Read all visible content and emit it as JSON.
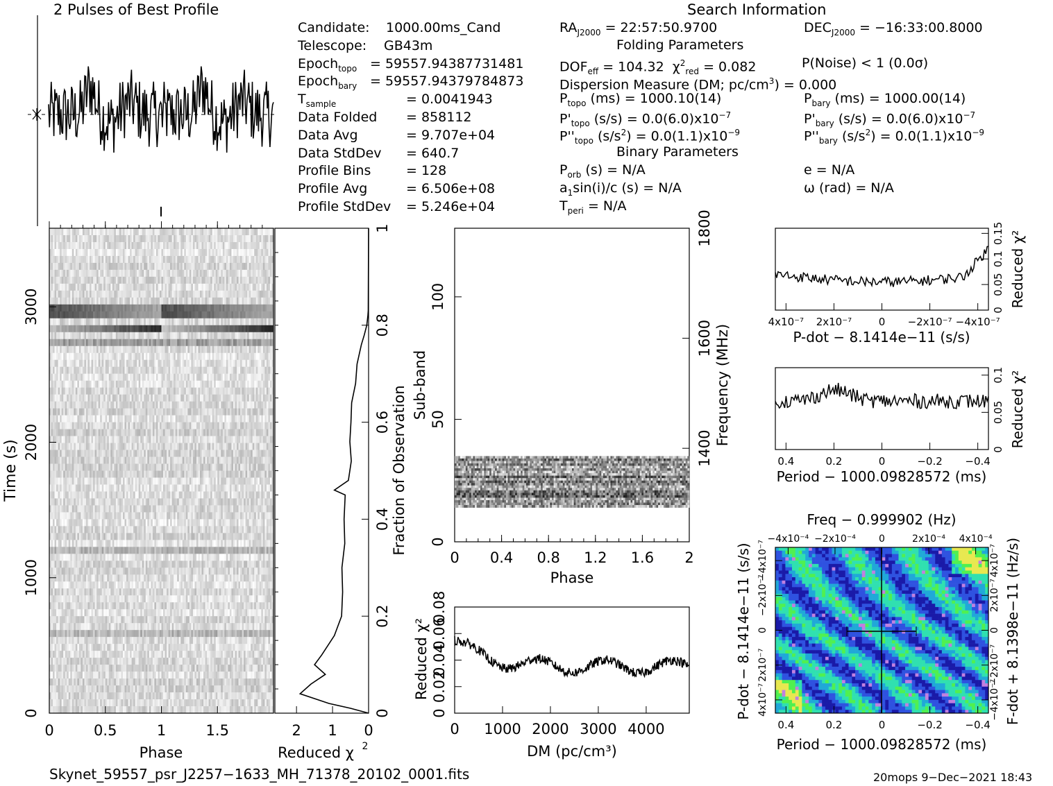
{
  "header": {
    "profile_title": "2 Pulses of Best Profile",
    "search_title": "Search Information",
    "folding_title": "Folding Parameters",
    "binary_title": "Binary Parameters"
  },
  "info_left": [
    {
      "label": "Candidate:",
      "value": "1000.00ms_Cand"
    },
    {
      "label": "Telescope:",
      "value": "GB43m"
    },
    {
      "label": "Epoch",
      "sub": "topo",
      "value": "= 59557.94387731481"
    },
    {
      "label": "Epoch",
      "sub": "bary",
      "value": "= 59557.94379784873"
    },
    {
      "label": "T",
      "sub": "sample",
      "value": "=   0.0041943"
    },
    {
      "label": "Data Folded",
      "value": "=   858112"
    },
    {
      "label": "Data Avg",
      "value": "=   9.707e+04"
    },
    {
      "label": "Data StdDev",
      "value": "=   640.7"
    },
    {
      "label": "Profile Bins",
      "value": "=   128"
    },
    {
      "label": "Profile Avg",
      "value": "=   6.506e+08"
    },
    {
      "label": "Profile StdDev",
      "value": "=   5.246e+04"
    }
  ],
  "info_mid": {
    "ra": "= 22:57:50.9700",
    "dec": "= −16:33:00.8000",
    "dof": "DOF",
    "dof_value": "= 104.32",
    "chi_value": "= 0.082",
    "pnoise": "P(Noise) < 1   (0.0σ)",
    "dm_line": "Dispersion Measure (DM; pc/cm",
    "dm_value": ") = 0.000",
    "ptopo": "(ms) =  1000.10(14)",
    "pbary": "(ms) =  1000.00(14)",
    "pdtopo": "(s/s) = 0.0(6.0)x10",
    "pdtopo_exp": "−7",
    "pdbary": "(s/s) = 0.0(6.0)x10",
    "pdbary_exp": "−7",
    "pddtopo": "= 0.0(1.1)x10",
    "pddtopo_exp": "−9",
    "pddbary": "= 0.0(1.1)x10",
    "pddbary_exp": "−9",
    "porb": "(s) = N/A",
    "a1": "(s) = N/A",
    "tperi": "= N/A",
    "ecc": "e = N/A",
    "omega": "ω (rad) = N/A"
  },
  "footer": {
    "filename": "Skynet_59557_psr_J2257−1633_MH_71378_20102_0001.fits",
    "stamp": "20mops   9−Dec−2021 18:43"
  },
  "chart_data": [
    {
      "id": "profile",
      "type": "line",
      "title": "2 Pulses of Best Profile",
      "xlim": [
        0,
        2
      ],
      "description_values": "noisy two-cycle pulse profile; 128 bins repeated twice",
      "n_bins": 128,
      "cycles": 2
    },
    {
      "id": "time-phase",
      "type": "heatmap",
      "xlabel": "Phase",
      "ylabel": "Time (s)",
      "xlim": [
        0,
        2
      ],
      "ylim": [
        0,
        3580
      ],
      "x_ticks": [
        "0",
        "0.5",
        "1",
        "1.5"
      ],
      "y_ticks": [
        "0",
        "1000",
        "2000",
        "3000"
      ],
      "dark_rows_s": [
        2730,
        2840,
        2960
      ],
      "grey_rows_s": [
        600,
        1200
      ]
    },
    {
      "id": "reduced-chi2-vs-fraction",
      "type": "line",
      "xlabel": "Reduced χ²",
      "ylabel": "Fraction of Observation",
      "x_ticks": [
        "2",
        "1",
        "0"
      ],
      "y_ticks": [
        "0",
        "0.2",
        "0.4",
        "0.6",
        "0.8",
        "1"
      ],
      "xlim": [
        2.6,
        0
      ],
      "ylim": [
        0,
        1
      ],
      "points": [
        [
          0,
          0
        ],
        [
          0.5,
          0.01
        ],
        [
          1.1,
          0.02
        ],
        [
          1.9,
          0.04
        ],
        [
          1.6,
          0.06
        ],
        [
          1.2,
          0.08
        ],
        [
          1.5,
          0.1
        ],
        [
          1.3,
          0.12
        ],
        [
          0.95,
          0.16
        ],
        [
          0.75,
          0.2
        ],
        [
          0.72,
          0.25
        ],
        [
          0.74,
          0.3
        ],
        [
          0.66,
          0.35
        ],
        [
          0.68,
          0.4
        ],
        [
          0.65,
          0.45
        ],
        [
          0.95,
          0.46
        ],
        [
          0.56,
          0.48
        ],
        [
          0.48,
          0.52
        ],
        [
          0.52,
          0.56
        ],
        [
          0.49,
          0.6
        ],
        [
          0.47,
          0.64
        ],
        [
          0.36,
          0.68
        ],
        [
          0.32,
          0.72
        ],
        [
          0.2,
          0.76
        ],
        [
          0.12,
          0.78
        ],
        [
          0.05,
          0.8
        ],
        [
          0.02,
          0.82
        ],
        [
          0.01,
          0.83
        ],
        [
          0.0,
          1.0
        ]
      ]
    },
    {
      "id": "subband-phase",
      "type": "heatmap",
      "xlabel": "Phase",
      "ylabel": "Sub-band",
      "y2label": "Frequency (MHz)",
      "xlim": [
        0,
        2
      ],
      "ylim": [
        0,
        128
      ],
      "x_ticks": [
        "0",
        "0.4",
        "0.8",
        "1.2",
        "1.6",
        "2"
      ],
      "y_ticks": [
        "0",
        "50",
        "100"
      ],
      "y2_ticks": [
        "1400",
        "1600",
        "1800"
      ],
      "active_subbands": [
        14,
        35
      ]
    },
    {
      "id": "dm-chi2",
      "type": "line",
      "xlabel": "DM (pc/cm³)",
      "ylabel": "Reduced χ²",
      "xlim": [
        0,
        4900
      ],
      "ylim": [
        0,
        0.08
      ],
      "x_ticks": [
        "0",
        "1000",
        "2000",
        "3000",
        "4000"
      ],
      "y_ticks": [
        "0",
        "0.02",
        "0.04",
        "0.06",
        "0.08"
      ],
      "baseline": 0.035
    },
    {
      "id": "pdot-chi2",
      "type": "line",
      "xlabel": "P-dot − 8.1414e−11 (s/s)",
      "ylabel": "Reduced χ²",
      "x_ticks": [
        "4x10⁻⁷",
        "2x10⁻⁷",
        "0",
        "−2x10⁻⁷",
        "−4x10⁻⁷"
      ],
      "y_ticks": [
        "0",
        "0.05",
        "0.1",
        "0.15"
      ],
      "ylim": [
        0,
        0.16
      ],
      "baseline": 0.07
    },
    {
      "id": "period-chi2",
      "type": "line",
      "xlabel": "Period − 1000.09828572 (ms)",
      "ylabel": "Reduced χ²",
      "x_ticks": [
        "0.4",
        "0.2",
        "0",
        "−0.2",
        "−0.4"
      ],
      "y_ticks": [
        "0",
        "0.05",
        "0.1"
      ],
      "ylim": [
        0,
        0.11
      ],
      "baseline": 0.065
    },
    {
      "id": "p-pdot-plane",
      "type": "heatmap",
      "title": "Freq − 0.999902 (Hz)",
      "xlabel": "Period − 1000.09828572 (ms)",
      "ylabel": "P-dot − 8.1414e−11 (s/s)",
      "y2label": "F-dot + 8.1398e−11 (Hz/s)",
      "x_ticks": [
        "0.4",
        "0.2",
        "0",
        "−0.2",
        "−0.4"
      ],
      "top_ticks": [
        "−4x10⁻⁴",
        "−2x10⁻⁴",
        "0",
        "2x10⁻⁴",
        "4x10⁻⁴"
      ],
      "y_ticks": [
        "4x10⁻⁷",
        "2x10⁻⁷",
        "0",
        "−2x10⁻⁷",
        "−4x10⁻⁷"
      ],
      "y2_ticks": [
        "−4x10⁻⁷",
        "−2x10⁻⁷",
        "0",
        "2x10⁻⁷",
        "4x10⁻⁷"
      ],
      "colors": [
        "#1a1aa8",
        "#2f52e0",
        "#20a8d8",
        "#30e0b0",
        "#50f050",
        "#e8e850",
        "#c080e0"
      ]
    }
  ]
}
